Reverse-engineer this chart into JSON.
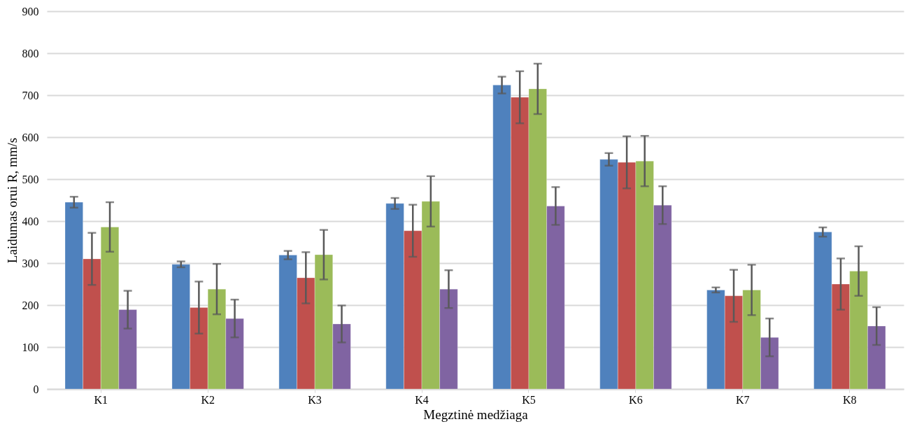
{
  "chart_data": {
    "type": "bar",
    "xlabel": "Megztinė medžiaga",
    "ylabel": "Laidumas orui R, mm/s",
    "categories": [
      "K1",
      "K2",
      "K3",
      "K4",
      "K5",
      "K6",
      "K7",
      "K8"
    ],
    "series": [
      {
        "color": "#4f81bd",
        "values": [
          445,
          297,
          319,
          442,
          724,
          547,
          236,
          374
        ],
        "errors": [
          13,
          7,
          10,
          13,
          20,
          15,
          6,
          11
        ]
      },
      {
        "color": "#c0504d",
        "values": [
          310,
          194,
          265,
          377,
          695,
          540,
          222,
          250
        ],
        "errors": [
          62,
          62,
          61,
          62,
          62,
          62,
          62,
          61
        ]
      },
      {
        "color": "#9bbb59",
        "values": [
          386,
          238,
          320,
          447,
          715,
          543,
          236,
          281
        ],
        "errors": [
          59,
          60,
          59,
          60,
          60,
          60,
          60,
          59
        ]
      },
      {
        "color": "#8064a2",
        "values": [
          189,
          168,
          155,
          238,
          436,
          438,
          123,
          150
        ],
        "errors": [
          45,
          45,
          44,
          45,
          45,
          45,
          45,
          45
        ]
      }
    ],
    "ylim": [
      0,
      900
    ],
    "yticks": [
      0,
      100,
      200,
      300,
      400,
      500,
      600,
      700,
      800,
      900
    ],
    "grid": "y",
    "legend": false
  }
}
